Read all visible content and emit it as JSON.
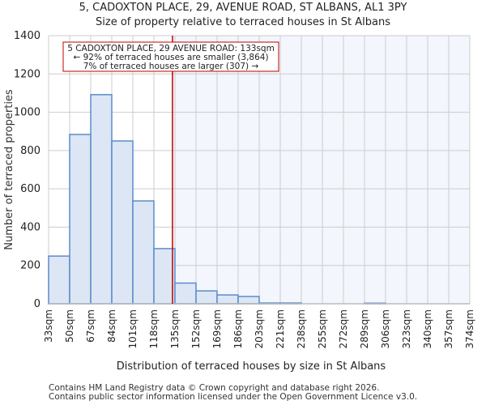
{
  "header": {
    "title": "5, CADOXTON PLACE, 29, AVENUE ROAD, ST ALBANS, AL1 3PY",
    "subtitle": "Size of property relative to terraced houses in St Albans"
  },
  "annotation": {
    "line1": "5 CADOXTON PLACE, 29 AVENUE ROAD: 133sqm",
    "line2": "← 92% of terraced houses are smaller (3,864)",
    "line3": "7% of terraced houses are larger (307) →"
  },
  "footer": {
    "line1": "Contains HM Land Registry data © Crown copyright and database right 2026.",
    "line2": "Contains public sector information licensed under the Open Government Licence v3.0."
  },
  "colors": {
    "bar_fill": "#dce6f4",
    "bar_edge": "#5b8ccc",
    "highlight_bg": "#f3f6fd",
    "marker": "#c00000",
    "grid": "#cccccc"
  },
  "chart_data": {
    "type": "bar",
    "title": "5, CADOXTON PLACE, 29, AVENUE ROAD, ST ALBANS, AL1 3PY",
    "subtitle": "Size of property relative to terraced houses in St Albans",
    "xlabel": "Distribution of terraced houses by size in St Albans",
    "ylabel": "Number of terraced properties",
    "categories": [
      "33sqm",
      "50sqm",
      "67sqm",
      "84sqm",
      "101sqm",
      "118sqm",
      "135sqm",
      "152sqm",
      "169sqm",
      "186sqm",
      "203sqm",
      "221sqm",
      "238sqm",
      "255sqm",
      "272sqm",
      "289sqm",
      "306sqm",
      "323sqm",
      "340sqm",
      "357sqm",
      "374sqm"
    ],
    "bin_edges": [
      33,
      50,
      67,
      84,
      101,
      118,
      135,
      152,
      169,
      186,
      203,
      221,
      238,
      255,
      272,
      289,
      306,
      323,
      340,
      357,
      374
    ],
    "values": [
      249,
      884,
      1092,
      850,
      537,
      288,
      108,
      67,
      46,
      38,
      4,
      4,
      0,
      0,
      0,
      3,
      0,
      0,
      0,
      0
    ],
    "ylim": [
      0,
      1400
    ],
    "yticks": [
      0,
      200,
      400,
      600,
      800,
      1000,
      1200,
      1400
    ],
    "grid": true,
    "marker": {
      "value": 133,
      "label": "5 CADOXTON PLACE, 29 AVENUE ROAD: 133sqm"
    },
    "annotation": [
      "5 CADOXTON PLACE, 29 AVENUE ROAD: 133sqm",
      "← 92% of terraced houses are smaller (3,864)",
      "7% of terraced houses are larger (307) →"
    ]
  }
}
